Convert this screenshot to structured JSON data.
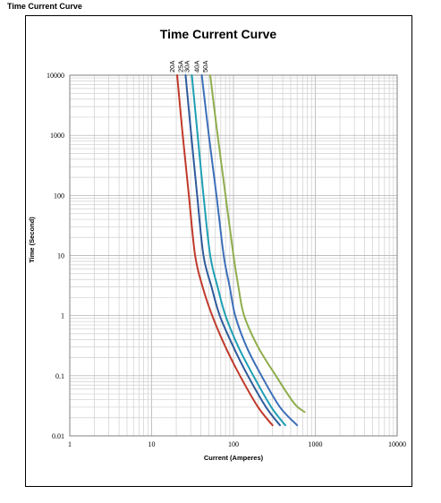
{
  "page_heading": "Time Current Curve",
  "chart_data": {
    "type": "line",
    "title": "Time Current Curve",
    "xlabel": "Current  (Amperes)",
    "ylabel": "Time (Second)",
    "x_scale": "log",
    "y_scale": "log",
    "xlim": [
      1,
      10000
    ],
    "ylim": [
      0.01,
      10000
    ],
    "grid": true,
    "x_ticks": [
      "1",
      "10",
      "100",
      "1000",
      "10000"
    ],
    "y_ticks": [
      "10000",
      "1000",
      "100",
      "10",
      "1",
      "0.1",
      "0.01"
    ],
    "series": [
      {
        "name": "20A",
        "color": "#c0392b",
        "points": [
          [
            20.5,
            10000
          ],
          [
            24,
            1000
          ],
          [
            28.5,
            100
          ],
          [
            34,
            10
          ],
          [
            42,
            3
          ],
          [
            55,
            1
          ],
          [
            80,
            0.3
          ],
          [
            120,
            0.1
          ],
          [
            200,
            0.03
          ],
          [
            300,
            0.015
          ]
        ]
      },
      {
        "name": "25A",
        "color": "#2e5a9c",
        "points": [
          [
            26,
            10000
          ],
          [
            30.5,
            1000
          ],
          [
            36,
            100
          ],
          [
            43,
            10
          ],
          [
            54,
            3
          ],
          [
            68,
            1
          ],
          [
            100,
            0.3
          ],
          [
            150,
            0.1
          ],
          [
            250,
            0.03
          ],
          [
            370,
            0.015
          ]
        ]
      },
      {
        "name": "30A",
        "color": "#1e9fb3",
        "points": [
          [
            31,
            10000
          ],
          [
            36.5,
            1000
          ],
          [
            43,
            100
          ],
          [
            52,
            10
          ],
          [
            64,
            3
          ],
          [
            80,
            1
          ],
          [
            115,
            0.3
          ],
          [
            175,
            0.1
          ],
          [
            290,
            0.03
          ],
          [
            430,
            0.015
          ]
        ]
      },
      {
        "name": "40A",
        "color": "#3d6fb8",
        "points": [
          [
            41,
            10000
          ],
          [
            50,
            1000
          ],
          [
            62,
            100
          ],
          [
            76,
            10
          ],
          [
            90,
            3
          ],
          [
            105,
            1
          ],
          [
            145,
            0.3
          ],
          [
            220,
            0.1
          ],
          [
            370,
            0.03
          ],
          [
            600,
            0.015
          ]
        ]
      },
      {
        "name": "50A",
        "color": "#8fad4c",
        "points": [
          [
            52,
            10000
          ],
          [
            64,
            1000
          ],
          [
            80,
            100
          ],
          [
            100,
            10
          ],
          [
            115,
            3
          ],
          [
            135,
            1
          ],
          [
            200,
            0.3
          ],
          [
            330,
            0.1
          ],
          [
            550,
            0.035
          ],
          [
            740,
            0.025
          ]
        ]
      }
    ]
  }
}
